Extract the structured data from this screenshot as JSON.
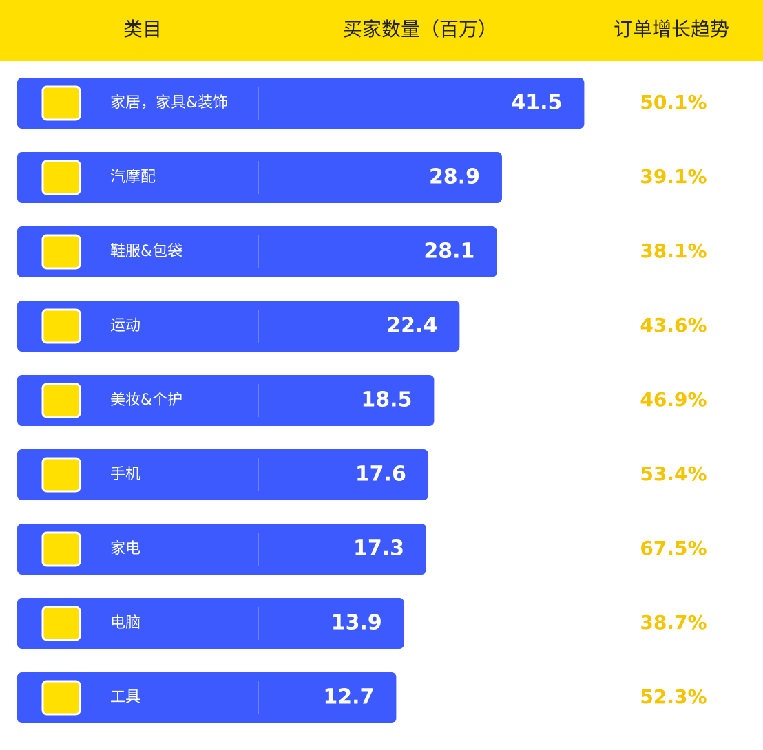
{
  "chart_data": {
    "type": "bar",
    "category_label": "类目",
    "categories": [
      "家居，家具&装饰",
      "汽摩配",
      "鞋服&包袋",
      "运动",
      "美妆&个护",
      "手机",
      "家电",
      "电脑",
      "工具"
    ],
    "series": [
      {
        "name": "买家数量（百万）",
        "color": "#3d5afe",
        "values": [
          41.5,
          28.9,
          28.1,
          22.4,
          18.5,
          17.6,
          17.3,
          13.9,
          12.7
        ]
      },
      {
        "name": "订单增长趋势",
        "color": "#f5c400",
        "values": [
          50.1,
          39.1,
          38.1,
          43.6,
          46.9,
          53.4,
          67.5,
          38.7,
          52.3
        ],
        "value_labels": [
          "50.1%",
          "39.1%",
          "38.1%",
          "43.6%",
          "46.9%",
          "53.4%",
          "67.5%",
          "38.7%",
          "52.3%"
        ]
      }
    ]
  }
}
